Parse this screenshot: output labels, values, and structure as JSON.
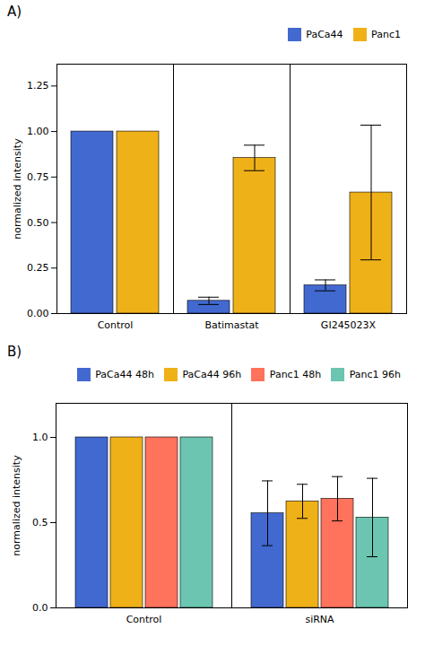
{
  "chart_data": [
    {
      "type": "bar",
      "title": "A)",
      "categories": [
        "Control",
        "Batimastat",
        "GI245023X"
      ],
      "series": [
        {
          "name": "PaCa44",
          "values": [
            1.0,
            0.07,
            0.155
          ],
          "errors": [
            0.0,
            0.02,
            0.03
          ]
        },
        {
          "name": "Panc1",
          "values": [
            1.0,
            0.855,
            0.665
          ],
          "errors": [
            0.0,
            0.07,
            0.37
          ]
        }
      ],
      "ylabel": "normalized intensity",
      "ylim": [
        0,
        1.37
      ],
      "yticks": [
        {
          "value": 0.0,
          "label": "0.00"
        },
        {
          "value": 0.25,
          "label": "0.25"
        },
        {
          "value": 0.5,
          "label": "0.50"
        },
        {
          "value": 0.75,
          "label": "0.75"
        },
        {
          "value": 1.0,
          "label": "1.00"
        },
        {
          "value": 1.25,
          "label": "1.25"
        }
      ],
      "legend": "upper right",
      "grid": false
    },
    {
      "type": "bar",
      "title": "B)",
      "categories": [
        "Control",
        "siRNA"
      ],
      "series": [
        {
          "name": "PaCa44 48h",
          "values": [
            1.0,
            0.555
          ],
          "errors": [
            0.0,
            0.19
          ]
        },
        {
          "name": "PaCa44 96h",
          "values": [
            1.0,
            0.625
          ],
          "errors": [
            0.0,
            0.1
          ]
        },
        {
          "name": "Panc1 48h",
          "values": [
            1.0,
            0.64
          ],
          "errors": [
            0.0,
            0.13
          ]
        },
        {
          "name": "Panc1 96h",
          "values": [
            1.0,
            0.53
          ],
          "errors": [
            0.0,
            0.23
          ]
        }
      ],
      "ylabel": "normalized intensity",
      "ylim": [
        0,
        1.2
      ],
      "yticks": [
        {
          "value": 0.0,
          "label": "0.0"
        },
        {
          "value": 0.5,
          "label": "0.5"
        },
        {
          "value": 1.0,
          "label": "1.0"
        }
      ],
      "legend": "upper right",
      "grid": false
    }
  ]
}
